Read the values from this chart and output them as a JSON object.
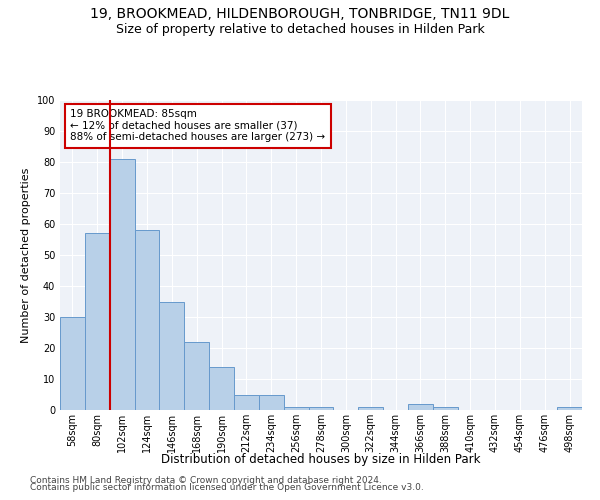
{
  "title1": "19, BROOKMEAD, HILDENBOROUGH, TONBRIDGE, TN11 9DL",
  "title2": "Size of property relative to detached houses in Hilden Park",
  "xlabel": "Distribution of detached houses by size in Hilden Park",
  "ylabel": "Number of detached properties",
  "categories": [
    "58sqm",
    "80sqm",
    "102sqm",
    "124sqm",
    "146sqm",
    "168sqm",
    "190sqm",
    "212sqm",
    "234sqm",
    "256sqm",
    "278sqm",
    "300sqm",
    "322sqm",
    "344sqm",
    "366sqm",
    "388sqm",
    "410sqm",
    "432sqm",
    "454sqm",
    "476sqm",
    "498sqm"
  ],
  "values": [
    30,
    57,
    81,
    58,
    35,
    22,
    14,
    5,
    5,
    1,
    1,
    0,
    1,
    0,
    2,
    1,
    0,
    0,
    0,
    0,
    1
  ],
  "bar_color": "#b8d0e8",
  "bar_edge_color": "#6699cc",
  "annotation_title": "19 BROOKMEAD: 85sqm",
  "annotation_line1": "← 12% of detached houses are smaller (37)",
  "annotation_line2": "88% of semi-detached houses are larger (273) →",
  "annotation_box_color": "#ffffff",
  "annotation_box_edge": "#cc0000",
  "vline_color": "#cc0000",
  "ylim": [
    0,
    100
  ],
  "yticks": [
    0,
    10,
    20,
    30,
    40,
    50,
    60,
    70,
    80,
    90,
    100
  ],
  "footer1": "Contains HM Land Registry data © Crown copyright and database right 2024.",
  "footer2": "Contains public sector information licensed under the Open Government Licence v3.0.",
  "bg_color": "#eef2f8",
  "title1_fontsize": 10,
  "title2_fontsize": 9,
  "xlabel_fontsize": 8.5,
  "ylabel_fontsize": 8,
  "tick_fontsize": 7,
  "footer_fontsize": 6.5,
  "annot_fontsize": 7.5
}
